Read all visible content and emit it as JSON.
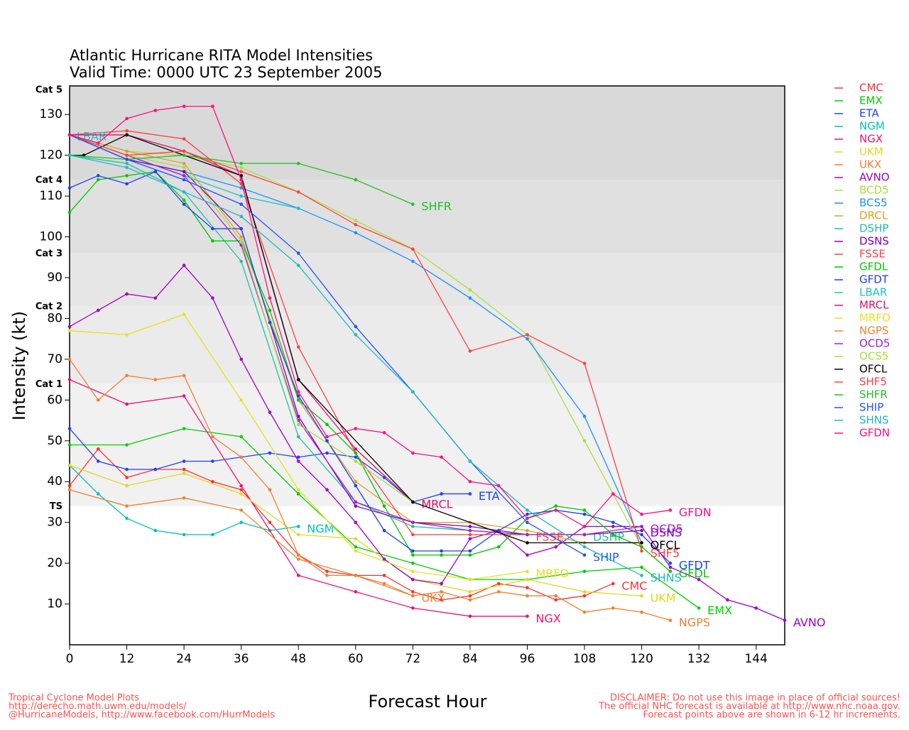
{
  "chart_data": {
    "type": "line",
    "title": "Atlantic Hurricane RITA Model Intensities",
    "subtitle": "Valid Time: 0000 UTC 23 September 2005",
    "x_label": "Forecast Hour",
    "y_label": "Intensity (kt)",
    "xlim": [
      0,
      150
    ],
    "ylim": [
      0,
      137
    ],
    "xticks": [
      0,
      12,
      24,
      36,
      48,
      60,
      72,
      84,
      96,
      108,
      120,
      132,
      144
    ],
    "yticks": [
      10,
      20,
      30,
      40,
      50,
      60,
      70,
      80,
      90,
      100,
      110,
      120,
      130
    ],
    "bands": [
      {
        "label": "Cat 5",
        "value": 137,
        "color": "#d9d9d9"
      },
      {
        "label": "Cat 4",
        "value": 114,
        "color": "#e0e0e0"
      },
      {
        "label": "Cat 3",
        "value": 96,
        "color": "#e6e6e6"
      },
      {
        "label": "Cat 2",
        "value": 83,
        "color": "#ebebeb"
      },
      {
        "label": "Cat 1",
        "value": 64,
        "color": "#f1f1f1"
      },
      {
        "label": "TS",
        "value": 34,
        "color": "#ffffff"
      }
    ],
    "footer_left": [
      "Tropical Cyclone Model Plots",
      "http://derecho.math.uwm.edu/models/",
      "@HurricaneModels, http://www.facebook.com/HurrModels"
    ],
    "footer_right": [
      "DISCLAIMER: Do not use this image in place of official sources!",
      "The official NHC forecast is available at http://www.nhc.noaa.gov.",
      "Forecast points above are shown in 6-12 hr increments."
    ],
    "series": [
      {
        "name": "CMC",
        "color": "#ff3030",
        "label": "end",
        "x": [
          0,
          6,
          12,
          18,
          24,
          30,
          36,
          42,
          48,
          54,
          60,
          66,
          72,
          78,
          84,
          90,
          96,
          102,
          108,
          114
        ],
        "values": [
          39,
          48,
          41,
          43,
          43,
          40,
          38,
          30,
          22,
          18,
          17,
          17,
          13,
          11,
          12,
          15,
          14,
          11,
          12,
          15
        ]
      },
      {
        "name": "EMX",
        "color": "#00d000",
        "label": "end",
        "x": [
          0,
          12,
          24,
          36,
          48,
          60,
          72,
          84,
          96,
          108,
          120,
          132
        ],
        "values": [
          49,
          49,
          53,
          51,
          37,
          24,
          20,
          16,
          16,
          18,
          19,
          9
        ]
      },
      {
        "name": "ETA",
        "color": "#2040ff",
        "label": "end",
        "x": [
          0,
          6,
          12,
          18,
          24,
          30,
          36,
          42,
          48,
          54,
          60,
          66,
          72,
          78,
          84
        ],
        "values": [
          53,
          45,
          43,
          43,
          45,
          45,
          46,
          47,
          46,
          47,
          46,
          41,
          35,
          37,
          37
        ]
      },
      {
        "name": "NGM",
        "color": "#00c0c0",
        "label": "end",
        "x": [
          0,
          6,
          12,
          18,
          24,
          30,
          36,
          42,
          48
        ],
        "values": [
          44,
          37,
          31,
          28,
          27,
          27,
          30,
          28,
          29
        ]
      },
      {
        "name": "NGX",
        "color": "#f01070",
        "label": "end",
        "x": [
          0,
          12,
          24,
          36,
          48,
          60,
          72,
          84,
          96
        ],
        "values": [
          65,
          59,
          61,
          39,
          17,
          13,
          9,
          7,
          7
        ]
      },
      {
        "name": "UKM",
        "color": "#e0d820",
        "label": "end",
        "x": [
          0,
          12,
          24,
          36,
          48,
          60,
          72,
          84,
          96,
          108,
          120
        ],
        "values": [
          44,
          39,
          42,
          37,
          27,
          26,
          16,
          13,
          16,
          13,
          12
        ]
      },
      {
        "name": "UKX",
        "color": "#f08030",
        "label": "end",
        "x": [
          0,
          12,
          24,
          36,
          48,
          60,
          72
        ],
        "values": [
          38,
          34,
          36,
          33,
          21,
          17,
          12
        ]
      },
      {
        "name": "AVNO",
        "color": "#a000c8",
        "label": "end",
        "x": [
          0,
          6,
          12,
          18,
          24,
          30,
          36,
          42,
          48,
          54,
          60,
          66,
          72,
          78,
          84,
          90,
          96,
          102,
          108,
          114,
          120,
          126,
          132,
          138,
          144,
          150
        ],
        "values": [
          78,
          82,
          86,
          85,
          93,
          85,
          70,
          57,
          45,
          38,
          30,
          21,
          16,
          15,
          26,
          28,
          22,
          24,
          29,
          29,
          29,
          19,
          16,
          11,
          9,
          6
        ]
      },
      {
        "name": "BCD5",
        "color": "#a8e040",
        "x": [
          0,
          12,
          24,
          36,
          48,
          60,
          72,
          84,
          96,
          108,
          120
        ],
        "values": [
          125,
          121,
          120,
          117,
          111,
          104,
          97,
          87,
          76,
          50,
          24
        ]
      },
      {
        "name": "BCS5",
        "color": "#1e90ff",
        "x": [
          0,
          12,
          24,
          36,
          48,
          60,
          72,
          84,
          96,
          108,
          120
        ],
        "values": [
          125,
          119,
          116,
          112,
          107,
          101,
          94,
          85,
          75,
          56,
          25
        ]
      },
      {
        "name": "DRCL",
        "color": "#e0a020",
        "x": [
          0,
          12,
          24,
          36,
          48,
          60,
          72,
          84,
          96,
          108,
          120
        ],
        "values": [
          125,
          121,
          118,
          100,
          60,
          40,
          30,
          30,
          28,
          25,
          25
        ]
      },
      {
        "name": "DSHP",
        "color": "#20c0a0",
        "label": "end",
        "x": [
          0,
          12,
          24,
          36,
          48,
          60,
          72,
          84,
          96,
          108
        ],
        "values": [
          120,
          118,
          111,
          94,
          51,
          35,
          29,
          28,
          27,
          27
        ]
      },
      {
        "name": "DSNS",
        "color": "#8000c0",
        "label": "end",
        "x": [
          0,
          12,
          24,
          36,
          48,
          60,
          72,
          84,
          96,
          108,
          120
        ],
        "values": [
          125,
          119,
          116,
          102,
          56,
          34,
          30,
          29,
          27,
          27,
          28
        ]
      },
      {
        "name": "FSSE",
        "color": "#ff4040",
        "label": "end",
        "x": [
          0,
          12,
          24,
          36,
          48,
          60,
          72,
          84,
          96
        ],
        "values": [
          125,
          126,
          124,
          113,
          73,
          47,
          27,
          27,
          27
        ]
      },
      {
        "name": "GFDL",
        "color": "#00c800",
        "label": "end",
        "x": [
          0,
          6,
          12,
          18,
          24,
          30,
          36,
          42,
          48,
          54,
          60,
          66,
          72,
          78,
          84,
          90,
          96,
          102,
          108,
          114,
          120,
          126
        ],
        "values": [
          106,
          114,
          115,
          116,
          109,
          99,
          99,
          82,
          60,
          54,
          47,
          34,
          22,
          22,
          22,
          24,
          31,
          34,
          33,
          27,
          24,
          18
        ]
      },
      {
        "name": "GFDT",
        "color": "#2040f0",
        "label": "end",
        "x": [
          0,
          6,
          12,
          18,
          24,
          30,
          36,
          42,
          48,
          54,
          60,
          66,
          72,
          78,
          84,
          90,
          96,
          102,
          108,
          114,
          120,
          126
        ],
        "values": [
          112,
          115,
          113,
          116,
          108,
          102,
          102,
          79,
          61,
          50,
          39,
          28,
          23,
          23,
          23,
          28,
          32,
          33,
          32,
          30,
          27,
          20
        ]
      },
      {
        "name": "LBAR",
        "color": "#20c0c8",
        "label": "start",
        "x": [
          0,
          12,
          24,
          36,
          48
        ],
        "values": [
          125,
          120,
          115,
          110,
          107
        ]
      },
      {
        "name": "MRCL",
        "color": "#e0106a",
        "label": "end",
        "x": [
          0,
          12,
          24,
          36,
          48,
          60,
          72
        ],
        "values": [
          125,
          125,
          121,
          115,
          65,
          48,
          35
        ]
      },
      {
        "name": "MRFO",
        "color": "#e8e020",
        "label": "end",
        "x": [
          0,
          12,
          24,
          36,
          48,
          60,
          72,
          84,
          96
        ],
        "values": [
          77,
          76,
          81,
          60,
          38,
          23,
          18,
          16,
          18
        ]
      },
      {
        "name": "NGPS",
        "color": "#f08030",
        "label": "end",
        "x": [
          0,
          6,
          12,
          18,
          24,
          30,
          36,
          42,
          48,
          54,
          60,
          66,
          72,
          78,
          84,
          90,
          96,
          102,
          108,
          114,
          120,
          126
        ],
        "values": [
          70,
          60,
          66,
          65,
          66,
          51,
          46,
          38,
          22,
          17,
          17,
          15,
          12,
          13,
          11,
          13,
          12,
          12,
          8,
          9,
          8,
          6
        ]
      },
      {
        "name": "OCD5",
        "color": "#a020d0",
        "label": "end",
        "x": [
          0,
          12,
          24,
          36,
          48,
          60,
          72,
          84,
          96,
          108,
          120
        ],
        "values": [
          125,
          120,
          115,
          98,
          55,
          35,
          30,
          28,
          27,
          27,
          29
        ]
      },
      {
        "name": "OCS5",
        "color": "#a0e040",
        "x": [
          0,
          12,
          24,
          36,
          48,
          60,
          72
        ],
        "values": [
          125,
          120,
          117,
          99,
          54,
          45,
          35
        ]
      },
      {
        "name": "OFCL",
        "color": "#000000",
        "label": "end",
        "x": [
          0,
          3,
          12,
          36,
          48,
          72,
          96,
          120
        ],
        "values": [
          120,
          120,
          125,
          115,
          65,
          35,
          25,
          25
        ]
      },
      {
        "name": "SHF5",
        "color": "#ff4040",
        "label": "end",
        "x": [
          0,
          12,
          24,
          36,
          48,
          60,
          72,
          84,
          96,
          108,
          120
        ],
        "values": [
          125,
          120,
          121,
          116,
          111,
          103,
          97,
          72,
          76,
          69,
          23
        ]
      },
      {
        "name": "SHFR",
        "color": "#20c020",
        "label": "end",
        "x": [
          0,
          12,
          24,
          36,
          48,
          60,
          72
        ],
        "values": [
          120,
          119,
          120,
          118,
          118,
          114,
          108
        ]
      },
      {
        "name": "SHIP",
        "color": "#2050ff",
        "label": "end",
        "x": [
          0,
          12,
          24,
          36,
          48,
          60,
          72,
          84,
          96,
          108
        ],
        "values": [
          125,
          119,
          114,
          108,
          96,
          78,
          62,
          45,
          30,
          22
        ]
      },
      {
        "name": "SHNS",
        "color": "#20b8c8",
        "label": "end",
        "x": [
          0,
          12,
          24,
          36,
          48,
          60,
          72,
          84,
          96,
          108,
          120
        ],
        "values": [
          120,
          117,
          111,
          105,
          93,
          76,
          62,
          45,
          33,
          24,
          17
        ]
      },
      {
        "name": "GFDN",
        "color": "#ff1080",
        "label": "end",
        "x": [
          0,
          6,
          12,
          18,
          24,
          30,
          36,
          42,
          48,
          54,
          60,
          66,
          72,
          78,
          84,
          90,
          96,
          102,
          108,
          114,
          120,
          126
        ],
        "values": [
          125,
          123,
          129,
          131,
          132,
          132,
          114,
          85,
          62,
          51,
          53,
          52,
          47,
          46,
          40,
          39,
          31,
          33,
          29,
          37,
          32,
          33
        ]
      }
    ]
  }
}
